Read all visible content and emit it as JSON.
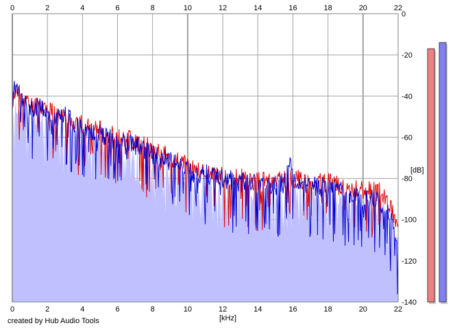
{
  "chart_data": {
    "type": "area",
    "title": "",
    "xlabel": "[kHz]",
    "ylabel": "[dB]",
    "xlim": [
      0,
      22
    ],
    "ylim": [
      -140,
      0
    ],
    "x_ticks": [
      0,
      2,
      4,
      6,
      8,
      10,
      12,
      14,
      16,
      18,
      20,
      22
    ],
    "y_ticks": [
      0,
      -20,
      -40,
      -60,
      -80,
      -100,
      -120,
      -140
    ],
    "grid": true,
    "fill_color": "#c0c0ff",
    "series": [
      {
        "color": "#e00000",
        "x": [
          0,
          0.2,
          0.5,
          1,
          1.5,
          2,
          2.5,
          3,
          3.5,
          4,
          4.5,
          5,
          5.5,
          6,
          6.5,
          7,
          7.5,
          8,
          8.5,
          9,
          9.5,
          10,
          10.5,
          11,
          11.5,
          12,
          12.5,
          13,
          13.5,
          14,
          14.5,
          15,
          15.5,
          15.8,
          16,
          16.5,
          17,
          17.5,
          18,
          18.5,
          19,
          19.5,
          20,
          20.5,
          21,
          21.5,
          22
        ],
        "values": [
          -42,
          -38,
          -40,
          -45,
          -44,
          -46,
          -50,
          -50,
          -52,
          -54,
          -56,
          -57,
          -58,
          -60,
          -60,
          -62,
          -64,
          -66,
          -68,
          -70,
          -72,
          -74,
          -76,
          -77,
          -78,
          -79,
          -80,
          -80,
          -81,
          -81,
          -82,
          -82,
          -80,
          -78,
          -80,
          -81,
          -82,
          -82,
          -82,
          -83,
          -84,
          -85,
          -86,
          -86,
          -87,
          -92,
          -104
        ]
      },
      {
        "color": "#0000d0",
        "x": [
          0,
          0.2,
          0.5,
          1,
          1.5,
          2,
          2.5,
          3,
          3.5,
          4,
          4.5,
          5,
          5.5,
          6,
          6.5,
          7,
          7.5,
          8,
          8.5,
          9,
          9.5,
          10,
          10.5,
          11,
          11.5,
          12,
          12.5,
          13,
          13.5,
          14,
          14.5,
          15,
          15.5,
          15.8,
          16,
          16.5,
          17,
          17.5,
          18,
          18.5,
          19,
          19.5,
          20,
          20.5,
          21,
          21.5,
          22
        ],
        "values": [
          -44,
          -33,
          -42,
          -46,
          -45,
          -48,
          -52,
          -48,
          -54,
          -56,
          -58,
          -58,
          -60,
          -62,
          -62,
          -64,
          -66,
          -68,
          -70,
          -72,
          -74,
          -76,
          -78,
          -78,
          -79,
          -80,
          -81,
          -82,
          -82,
          -83,
          -84,
          -84,
          -82,
          -72,
          -82,
          -83,
          -84,
          -84,
          -85,
          -86,
          -87,
          -88,
          -90,
          -90,
          -92,
          -98,
          -112
        ]
      }
    ],
    "levels": [
      {
        "color": "#f08080",
        "level_db": -17
      },
      {
        "color": "#8080f0",
        "level_db": -14
      }
    ]
  },
  "footer": {
    "credit": "created by Hub Audio Tools"
  }
}
